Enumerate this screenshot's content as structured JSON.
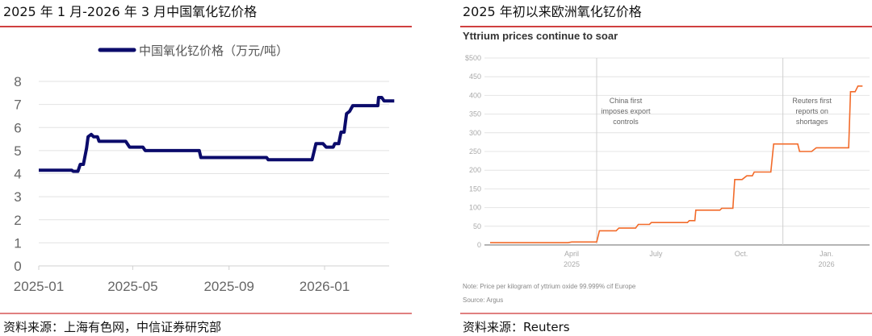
{
  "left_panel": {
    "title": "2025 年 1 月-2026 年 3 月中国氧化钇价格",
    "source": "资料来源：上海有色网，中信证券研究部"
  },
  "right_panel": {
    "title": "2025 年初以来欧洲氧化钇价格",
    "source": "资料来源：Reuters"
  },
  "chart_data": [
    {
      "type": "line",
      "legend": "中国氧化钇价格（万元/吨）",
      "legend_position": "top",
      "grid": true,
      "ylim": [
        0,
        8
      ],
      "y_ticks": [
        "0",
        "1",
        "2",
        "3",
        "4",
        "5",
        "6",
        "7",
        "8"
      ],
      "x_ticks": [
        "2025-01",
        "2025-05",
        "2025-09",
        "2026-01"
      ],
      "color": "#0b0b6b",
      "series": [
        {
          "name": "中国氧化钇价格（万元/吨）",
          "points": [
            [
              "2025-01-01",
              4.15
            ],
            [
              "2025-02-12",
              4.15
            ],
            [
              "2025-02-14",
              4.1
            ],
            [
              "2025-02-20",
              4.1
            ],
            [
              "2025-02-23",
              4.4
            ],
            [
              "2025-02-27",
              4.4
            ],
            [
              "2025-03-03",
              5.1
            ],
            [
              "2025-03-05",
              5.6
            ],
            [
              "2025-03-09",
              5.7
            ],
            [
              "2025-03-12",
              5.6
            ],
            [
              "2025-03-17",
              5.6
            ],
            [
              "2025-03-19",
              5.4
            ],
            [
              "2025-04-22",
              5.4
            ],
            [
              "2025-04-27",
              5.15
            ],
            [
              "2025-05-14",
              5.15
            ],
            [
              "2025-05-17",
              5.0
            ],
            [
              "2025-07-25",
              5.0
            ],
            [
              "2025-07-27",
              4.7
            ],
            [
              "2025-10-19",
              4.7
            ],
            [
              "2025-10-21",
              4.6
            ],
            [
              "2025-12-16",
              4.6
            ],
            [
              "2025-12-21",
              5.3
            ],
            [
              "2025-12-30",
              5.3
            ],
            [
              "2026-01-03",
              5.15
            ],
            [
              "2026-01-12",
              5.15
            ],
            [
              "2026-01-14",
              5.3
            ],
            [
              "2026-01-19",
              5.3
            ],
            [
              "2026-01-22",
              5.8
            ],
            [
              "2026-01-26",
              5.8
            ],
            [
              "2026-01-29",
              6.6
            ],
            [
              "2026-02-02",
              6.7
            ],
            [
              "2026-02-06",
              6.95
            ],
            [
              "2026-03-10",
              6.95
            ],
            [
              "2026-03-11",
              7.3
            ],
            [
              "2026-03-15",
              7.3
            ],
            [
              "2026-03-18",
              7.15
            ],
            [
              "2026-03-31",
              7.15
            ]
          ]
        }
      ]
    },
    {
      "type": "line",
      "title": "Yttrium prices continue to soar",
      "grid": true,
      "ylim": [
        0,
        500
      ],
      "y_ticks": [
        "0",
        "50",
        "100",
        "150",
        "200",
        "250",
        "300",
        "350",
        "400",
        "450",
        "$500"
      ],
      "x_ticks": [
        {
          "date": "2025-04-01",
          "label": "April",
          "sub": "2025"
        },
        {
          "date": "2025-07-01",
          "label": "July",
          "sub": ""
        },
        {
          "date": "2025-10-01",
          "label": "Oct.",
          "sub": ""
        },
        {
          "date": "2026-01-01",
          "label": "Jan.",
          "sub": "2026"
        }
      ],
      "annotations": [
        {
          "date": "2025-04-28",
          "lines": [
            "China first",
            "imposes export",
            "controls"
          ]
        },
        {
          "date": "2025-11-15",
          "lines": [
            "Reuters first",
            "reports on",
            "shortages"
          ]
        }
      ],
      "note": "Note: Price per kilogram of yttrium oxide 99.999% cif Europe",
      "source": "Source: Argus",
      "color": "#f26b2a",
      "series": [
        {
          "points": [
            [
              "2025-01-03",
              6
            ],
            [
              "2025-03-28",
              6
            ],
            [
              "2025-04-01",
              8
            ],
            [
              "2025-04-28",
              8
            ],
            [
              "2025-05-01",
              38
            ],
            [
              "2025-05-19",
              38
            ],
            [
              "2025-05-22",
              45
            ],
            [
              "2025-06-09",
              45
            ],
            [
              "2025-06-12",
              55
            ],
            [
              "2025-06-24",
              55
            ],
            [
              "2025-06-26",
              60
            ],
            [
              "2025-08-04",
              60
            ],
            [
              "2025-08-06",
              65
            ],
            [
              "2025-08-12",
              65
            ],
            [
              "2025-08-13",
              93
            ],
            [
              "2025-09-08",
              93
            ],
            [
              "2025-09-10",
              98
            ],
            [
              "2025-09-22",
              98
            ],
            [
              "2025-09-24",
              175
            ],
            [
              "2025-10-02",
              175
            ],
            [
              "2025-10-07",
              185
            ],
            [
              "2025-10-13",
              185
            ],
            [
              "2025-10-15",
              195
            ],
            [
              "2025-11-02",
              195
            ],
            [
              "2025-11-05",
              270
            ],
            [
              "2025-12-01",
              270
            ],
            [
              "2025-12-03",
              250
            ],
            [
              "2025-12-16",
              250
            ],
            [
              "2025-12-21",
              260
            ],
            [
              "2026-01-25",
              260
            ],
            [
              "2026-01-27",
              410
            ],
            [
              "2026-02-01",
              410
            ],
            [
              "2026-02-04",
              425
            ],
            [
              "2026-02-09",
              425
            ]
          ]
        }
      ]
    }
  ]
}
